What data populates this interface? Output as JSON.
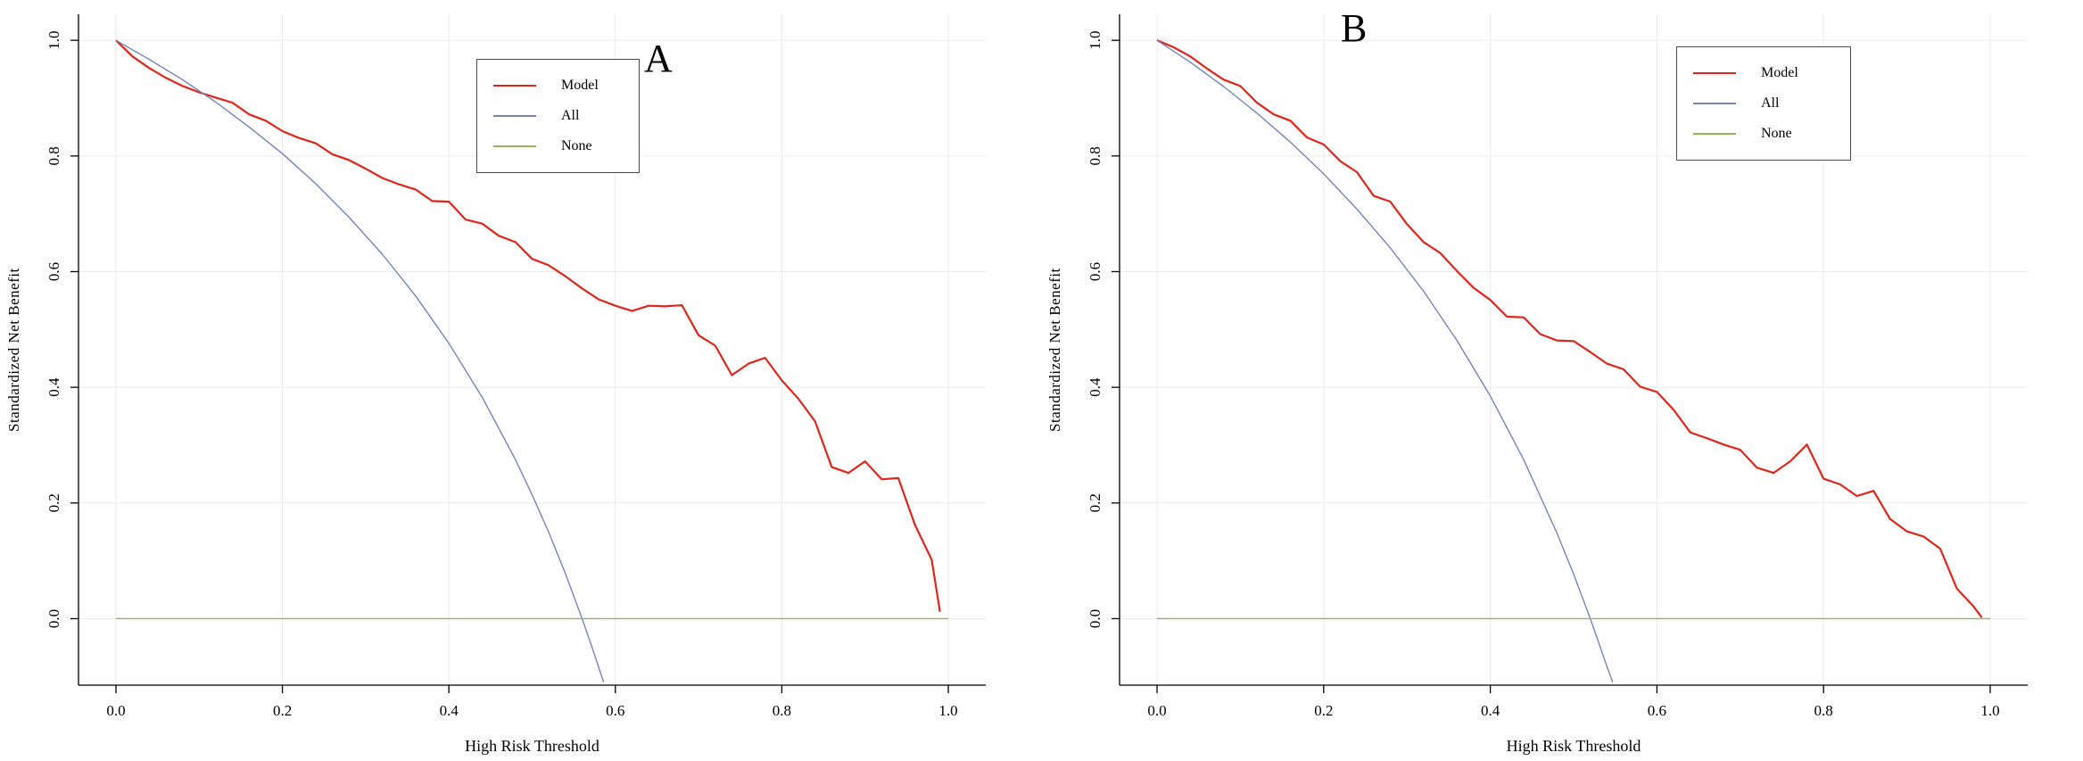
{
  "page": {
    "background": "#ffffff"
  },
  "chart_data": [
    {
      "panel_label": "A",
      "type": "line",
      "title": "",
      "xlabel": "High Risk Threshold",
      "ylabel": "Standardized Net Benefit",
      "xlim": [
        0,
        1
      ],
      "ylim": [
        0,
        1
      ],
      "xticks": [
        0,
        0.2,
        0.4,
        0.6,
        0.8,
        1
      ],
      "yticks": [
        0,
        0.2,
        0.4,
        0.6,
        0.8,
        1
      ],
      "grid": true,
      "grid_color": "#ebebeb",
      "axis_color": "#000000",
      "legend": {
        "position": "top-right",
        "entries": [
          {
            "label": "Model",
            "color": "#e0261c"
          },
          {
            "label": "All",
            "color": "#7585bb"
          },
          {
            "label": "None",
            "color": "#8fb85c"
          }
        ]
      },
      "series": [
        {
          "name": "Model",
          "color": "#e0261c",
          "width": 2.2,
          "points": [
            [
              0,
              1
            ],
            [
              0.02,
              0.972
            ],
            [
              0.04,
              0.952
            ],
            [
              0.06,
              0.935
            ],
            [
              0.08,
              0.921
            ],
            [
              0.1,
              0.91
            ],
            [
              0.12,
              0.901
            ],
            [
              0.14,
              0.892
            ],
            [
              0.16,
              0.872
            ],
            [
              0.18,
              0.861
            ],
            [
              0.2,
              0.843
            ],
            [
              0.22,
              0.831
            ],
            [
              0.24,
              0.822
            ],
            [
              0.26,
              0.803
            ],
            [
              0.28,
              0.793
            ],
            [
              0.3,
              0.778
            ],
            [
              0.32,
              0.762
            ],
            [
              0.34,
              0.751
            ],
            [
              0.36,
              0.742
            ],
            [
              0.38,
              0.722
            ],
            [
              0.4,
              0.721
            ],
            [
              0.42,
              0.69
            ],
            [
              0.44,
              0.683
            ],
            [
              0.46,
              0.662
            ],
            [
              0.48,
              0.651
            ],
            [
              0.5,
              0.622
            ],
            [
              0.52,
              0.611
            ],
            [
              0.54,
              0.592
            ],
            [
              0.56,
              0.571
            ],
            [
              0.58,
              0.552
            ],
            [
              0.6,
              0.541
            ],
            [
              0.62,
              0.532
            ],
            [
              0.64,
              0.541
            ],
            [
              0.66,
              0.54
            ],
            [
              0.68,
              0.542
            ],
            [
              0.7,
              0.49
            ],
            [
              0.72,
              0.472
            ],
            [
              0.74,
              0.421
            ],
            [
              0.76,
              0.441
            ],
            [
              0.78,
              0.451
            ],
            [
              0.8,
              0.412
            ],
            [
              0.82,
              0.38
            ],
            [
              0.84,
              0.341
            ],
            [
              0.86,
              0.262
            ],
            [
              0.88,
              0.252
            ],
            [
              0.9,
              0.272
            ],
            [
              0.92,
              0.241
            ],
            [
              0.94,
              0.243
            ],
            [
              0.96,
              0.162
            ],
            [
              0.98,
              0.102
            ],
            [
              0.99,
              0.012
            ]
          ]
        },
        {
          "name": "All",
          "color": "#7585bb",
          "width": 1.4,
          "points": [
            [
              0,
              1
            ],
            [
              0.04,
              0.967
            ],
            [
              0.08,
              0.932
            ],
            [
              0.12,
              0.893
            ],
            [
              0.16,
              0.85
            ],
            [
              0.2,
              0.804
            ],
            [
              0.24,
              0.752
            ],
            [
              0.28,
              0.694
            ],
            [
              0.32,
              0.63
            ],
            [
              0.36,
              0.558
            ],
            [
              0.4,
              0.476
            ],
            [
              0.44,
              0.383
            ],
            [
              0.48,
              0.275
            ],
            [
              0.5,
              0.214
            ],
            [
              0.52,
              0.149
            ],
            [
              0.54,
              0.078
            ],
            [
              0.56,
              0
            ],
            [
              0.57,
              -0.041
            ],
            [
              0.58,
              -0.084
            ],
            [
              0.586,
              -0.11
            ]
          ]
        },
        {
          "name": "None",
          "color": "#8fb85c",
          "width": 1.4,
          "points": [
            [
              0,
              0
            ],
            [
              1,
              0
            ]
          ]
        }
      ]
    },
    {
      "panel_label": "B",
      "type": "line",
      "title": "",
      "xlabel": "High Risk Threshold",
      "ylabel": "Standardized Net Benefit",
      "xlim": [
        0,
        1
      ],
      "ylim": [
        0,
        1
      ],
      "xticks": [
        0,
        0.2,
        0.4,
        0.6,
        0.8,
        1
      ],
      "yticks": [
        0,
        0.2,
        0.4,
        0.6,
        0.8,
        1
      ],
      "grid": true,
      "grid_color": "#ebebeb",
      "axis_color": "#000000",
      "legend": {
        "position": "top-right",
        "entries": [
          {
            "label": "Model",
            "color": "#e0261c"
          },
          {
            "label": "All",
            "color": "#7585bb"
          },
          {
            "label": "None",
            "color": "#8fb85c"
          }
        ]
      },
      "series": [
        {
          "name": "Model",
          "color": "#e0261c",
          "width": 2.2,
          "points": [
            [
              0,
              1
            ],
            [
              0.02,
              0.988
            ],
            [
              0.04,
              0.972
            ],
            [
              0.06,
              0.951
            ],
            [
              0.08,
              0.932
            ],
            [
              0.1,
              0.921
            ],
            [
              0.12,
              0.892
            ],
            [
              0.14,
              0.872
            ],
            [
              0.16,
              0.861
            ],
            [
              0.18,
              0.832
            ],
            [
              0.2,
              0.82
            ],
            [
              0.22,
              0.791
            ],
            [
              0.24,
              0.772
            ],
            [
              0.26,
              0.731
            ],
            [
              0.28,
              0.721
            ],
            [
              0.3,
              0.682
            ],
            [
              0.32,
              0.651
            ],
            [
              0.34,
              0.632
            ],
            [
              0.36,
              0.601
            ],
            [
              0.38,
              0.572
            ],
            [
              0.4,
              0.551
            ],
            [
              0.42,
              0.522
            ],
            [
              0.44,
              0.521
            ],
            [
              0.46,
              0.492
            ],
            [
              0.48,
              0.481
            ],
            [
              0.5,
              0.48
            ],
            [
              0.52,
              0.461
            ],
            [
              0.54,
              0.441
            ],
            [
              0.56,
              0.431
            ],
            [
              0.58,
              0.401
            ],
            [
              0.6,
              0.392
            ],
            [
              0.62,
              0.361
            ],
            [
              0.64,
              0.322
            ],
            [
              0.66,
              0.312
            ],
            [
              0.68,
              0.301
            ],
            [
              0.7,
              0.292
            ],
            [
              0.72,
              0.261
            ],
            [
              0.74,
              0.252
            ],
            [
              0.76,
              0.272
            ],
            [
              0.78,
              0.301
            ],
            [
              0.8,
              0.242
            ],
            [
              0.82,
              0.232
            ],
            [
              0.84,
              0.212
            ],
            [
              0.86,
              0.221
            ],
            [
              0.88,
              0.172
            ],
            [
              0.9,
              0.151
            ],
            [
              0.92,
              0.142
            ],
            [
              0.94,
              0.121
            ],
            [
              0.96,
              0.052
            ],
            [
              0.98,
              0.021
            ],
            [
              0.99,
              0.002
            ]
          ]
        },
        {
          "name": "All",
          "color": "#7585bb",
          "width": 1.4,
          "points": [
            [
              0,
              1
            ],
            [
              0.04,
              0.962
            ],
            [
              0.08,
              0.92
            ],
            [
              0.12,
              0.874
            ],
            [
              0.16,
              0.824
            ],
            [
              0.2,
              0.769
            ],
            [
              0.24,
              0.708
            ],
            [
              0.28,
              0.641
            ],
            [
              0.32,
              0.566
            ],
            [
              0.36,
              0.481
            ],
            [
              0.4,
              0.385
            ],
            [
              0.44,
              0.275
            ],
            [
              0.48,
              0.148
            ],
            [
              0.5,
              0.077
            ],
            [
              0.52,
              0
            ],
            [
              0.53,
              -0.041
            ],
            [
              0.54,
              -0.083
            ],
            [
              0.547,
              -0.11
            ]
          ]
        },
        {
          "name": "None",
          "color": "#8fb85c",
          "width": 1.4,
          "points": [
            [
              0,
              0
            ],
            [
              1,
              0
            ]
          ]
        }
      ]
    }
  ]
}
